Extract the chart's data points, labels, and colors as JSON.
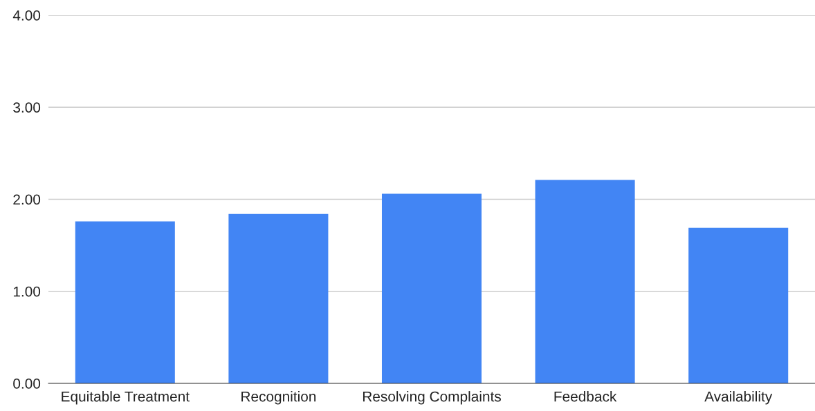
{
  "chart_data": {
    "type": "bar",
    "categories": [
      "Equitable Treatment",
      "Recognition",
      "Resolving Complaints",
      "Feedback",
      "Availability"
    ],
    "values": [
      1.76,
      1.84,
      2.06,
      2.21,
      1.69
    ],
    "color": "#4285f4",
    "ylim": [
      0,
      4
    ],
    "yticks": [
      {
        "value": 0,
        "label": "0.00"
      },
      {
        "value": 1,
        "label": "1.00"
      },
      {
        "value": 2,
        "label": "2.00"
      },
      {
        "value": 3,
        "label": "3.00"
      },
      {
        "value": 4,
        "label": "4.00"
      }
    ],
    "grid": "y"
  }
}
